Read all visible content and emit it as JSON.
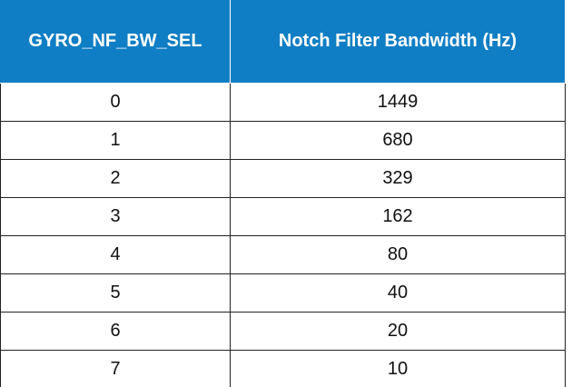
{
  "table": {
    "headers": [
      "GYRO_NF_BW_SEL",
      "Notch Filter Bandwidth (Hz)"
    ],
    "rows": [
      [
        "0",
        "1449"
      ],
      [
        "1",
        "680"
      ],
      [
        "2",
        "329"
      ],
      [
        "3",
        "162"
      ],
      [
        "4",
        "80"
      ],
      [
        "5",
        "40"
      ],
      [
        "6",
        "20"
      ],
      [
        "7",
        "10"
      ]
    ],
    "header_color": "#0f7ec4"
  }
}
